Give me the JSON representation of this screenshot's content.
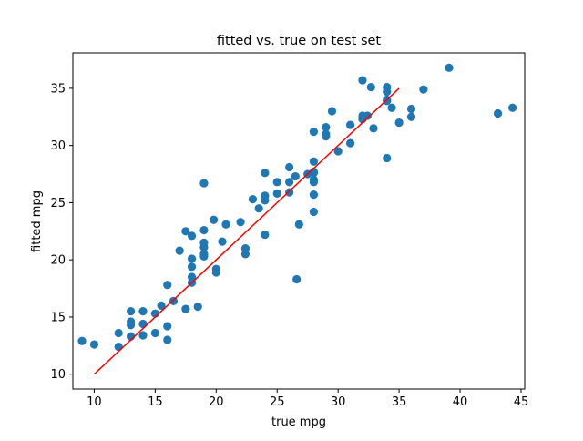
{
  "chart_data": {
    "type": "scatter",
    "title": "fitted vs. true on test set",
    "xlabel": "true mpg",
    "ylabel": "fitted mpg",
    "xlim": [
      8.25,
      45.3
    ],
    "ylim": [
      8.7,
      38.1
    ],
    "xticks": [
      10,
      15,
      20,
      25,
      30,
      35,
      40,
      45
    ],
    "yticks": [
      10,
      15,
      20,
      25,
      30,
      35
    ],
    "grid": false,
    "colors": {
      "points": "#1f77b4",
      "line": "#ff0000"
    },
    "reference_line": {
      "x": [
        10,
        35
      ],
      "y": [
        10,
        35
      ]
    },
    "points": [
      [
        9.0,
        12.9
      ],
      [
        10.0,
        12.6
      ],
      [
        12.0,
        12.4
      ],
      [
        12.0,
        13.6
      ],
      [
        13.0,
        13.3
      ],
      [
        13.0,
        14.3
      ],
      [
        13.0,
        14.6
      ],
      [
        13.0,
        15.5
      ],
      [
        14.0,
        15.5
      ],
      [
        14.0,
        14.4
      ],
      [
        14.0,
        13.4
      ],
      [
        15.0,
        13.6
      ],
      [
        15.0,
        15.3
      ],
      [
        15.5,
        16.0
      ],
      [
        16.0,
        17.8
      ],
      [
        16.0,
        14.2
      ],
      [
        16.0,
        13.0
      ],
      [
        16.5,
        16.4
      ],
      [
        17.0,
        20.8
      ],
      [
        17.5,
        15.7
      ],
      [
        17.5,
        22.5
      ],
      [
        18.0,
        22.1
      ],
      [
        18.0,
        20.1
      ],
      [
        18.0,
        19.4
      ],
      [
        18.0,
        18.5
      ],
      [
        18.0,
        18.0
      ],
      [
        18.5,
        15.9
      ],
      [
        19.0,
        26.7
      ],
      [
        19.0,
        22.6
      ],
      [
        19.0,
        21.5
      ],
      [
        19.0,
        21.1
      ],
      [
        19.0,
        20.5
      ],
      [
        19.0,
        20.3
      ],
      [
        19.8,
        23.5
      ],
      [
        20.0,
        19.2
      ],
      [
        20.0,
        18.9
      ],
      [
        20.5,
        21.6
      ],
      [
        20.8,
        23.1
      ],
      [
        22.0,
        23.3
      ],
      [
        22.4,
        21.0
      ],
      [
        22.4,
        20.5
      ],
      [
        23.0,
        25.3
      ],
      [
        23.5,
        24.5
      ],
      [
        24.0,
        25.2
      ],
      [
        24.0,
        25.6
      ],
      [
        24.0,
        27.6
      ],
      [
        24.0,
        22.2
      ],
      [
        25.0,
        25.8
      ],
      [
        25.0,
        26.8
      ],
      [
        26.0,
        25.9
      ],
      [
        26.0,
        26.8
      ],
      [
        26.0,
        28.1
      ],
      [
        26.5,
        27.3
      ],
      [
        26.6,
        18.3
      ],
      [
        26.8,
        23.1
      ],
      [
        27.5,
        27.5
      ],
      [
        28.0,
        27.6
      ],
      [
        28.0,
        27.7
      ],
      [
        28.0,
        27.0
      ],
      [
        28.0,
        26.8
      ],
      [
        28.0,
        28.6
      ],
      [
        28.0,
        31.2
      ],
      [
        28.0,
        25.7
      ],
      [
        28.0,
        24.2
      ],
      [
        29.0,
        31.6
      ],
      [
        29.0,
        31.0
      ],
      [
        29.0,
        30.8
      ],
      [
        29.5,
        33.0
      ],
      [
        30.0,
        29.5
      ],
      [
        31.0,
        31.8
      ],
      [
        31.0,
        30.2
      ],
      [
        32.0,
        35.7
      ],
      [
        32.0,
        32.6
      ],
      [
        32.0,
        32.3
      ],
      [
        32.4,
        32.6
      ],
      [
        32.7,
        35.1
      ],
      [
        32.9,
        31.5
      ],
      [
        34.0,
        35.1
      ],
      [
        34.0,
        34.7
      ],
      [
        34.0,
        34.0
      ],
      [
        34.0,
        33.9
      ],
      [
        34.0,
        28.9
      ],
      [
        34.4,
        33.3
      ],
      [
        35.0,
        32.0
      ],
      [
        36.0,
        33.2
      ],
      [
        36.0,
        32.5
      ],
      [
        37.0,
        34.9
      ],
      [
        39.1,
        36.8
      ],
      [
        43.1,
        32.8
      ],
      [
        44.3,
        33.3
      ]
    ]
  }
}
